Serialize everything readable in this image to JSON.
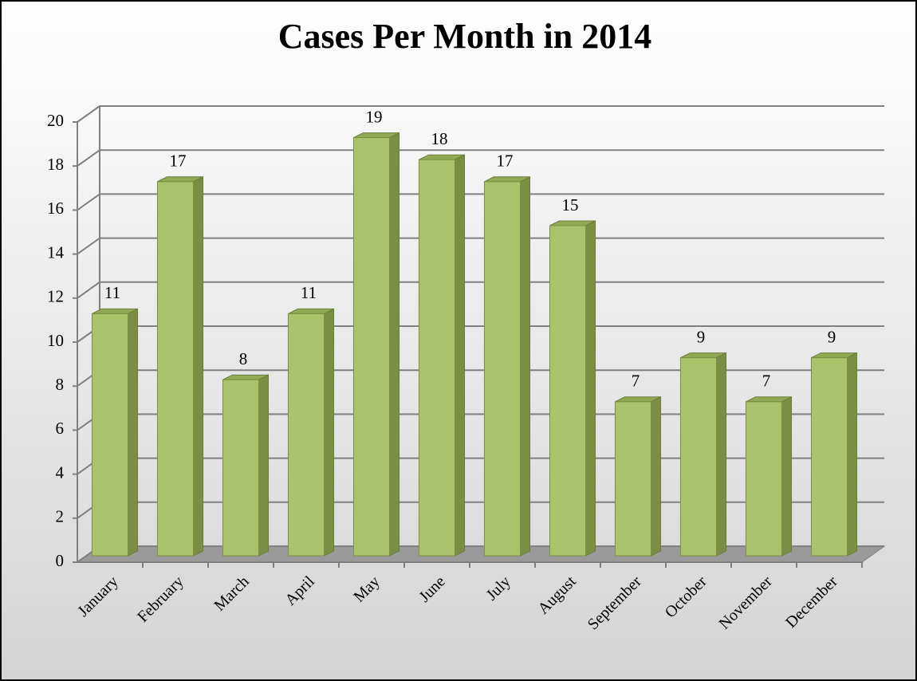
{
  "chart_data": {
    "type": "bar",
    "title": "Cases Per Month in 2014",
    "categories": [
      "January",
      "February",
      "March",
      "April",
      "May",
      "June",
      "July",
      "August",
      "September",
      "October",
      "November",
      "December"
    ],
    "values": [
      11,
      17,
      8,
      11,
      19,
      18,
      17,
      15,
      7,
      9,
      7,
      9
    ],
    "color": "#a9c36a",
    "ylim": [
      0,
      20
    ],
    "yticks": [
      0,
      2,
      4,
      6,
      8,
      10,
      12,
      14,
      16,
      18,
      20
    ],
    "grid": true
  }
}
